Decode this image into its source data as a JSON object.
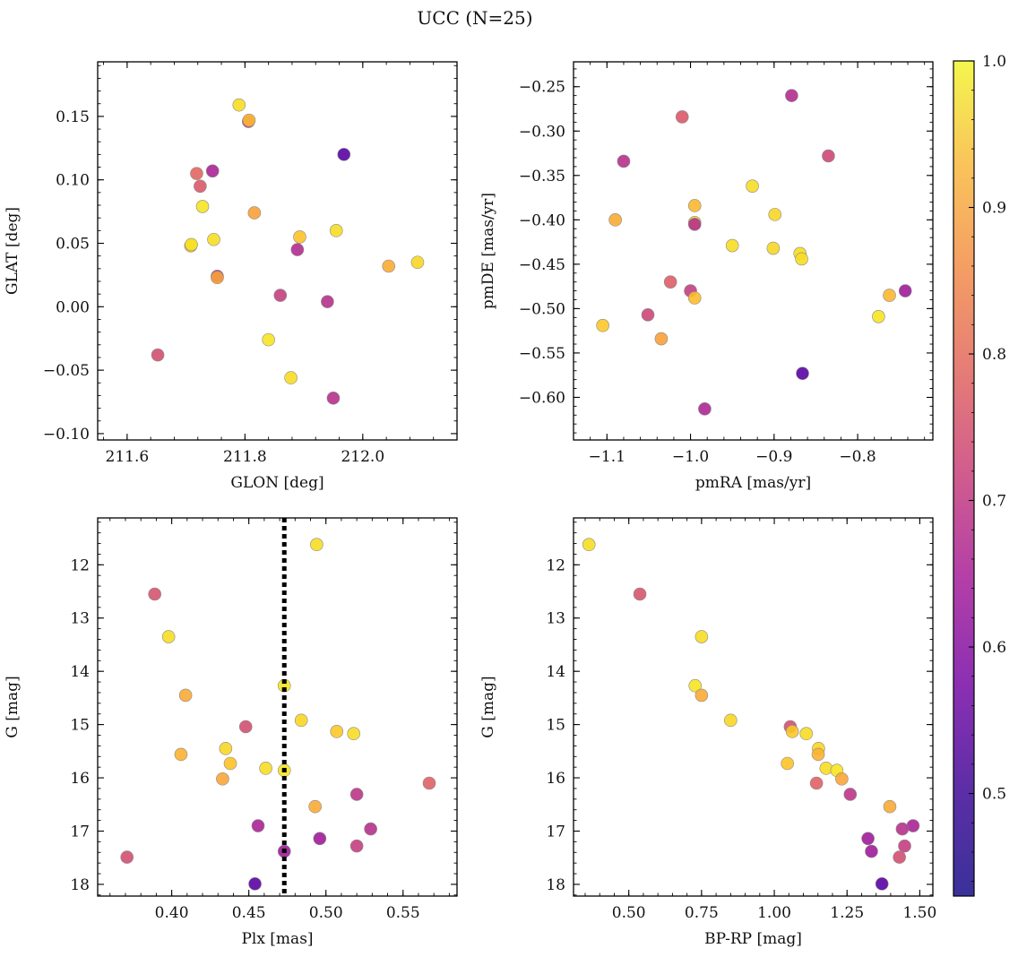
{
  "figure": {
    "title": "UCC (N=25)"
  },
  "chart_data": [
    {
      "type": "scatter",
      "xlabel": "GLON [deg]",
      "ylabel": "GLAT [deg]",
      "xlim": [
        211.55,
        212.16
      ],
      "ylim": [
        -0.105,
        0.193
      ],
      "xticks": [
        211.6,
        211.8,
        212.0
      ],
      "xtick_labels": [
        "211.6",
        "211.8",
        "212.0"
      ],
      "yticks": [
        -0.1,
        -0.05,
        0.0,
        0.05,
        0.1,
        0.15
      ],
      "ytick_labels": [
        "−0.10",
        "−0.05",
        "0.00",
        "0.05",
        "0.10",
        "0.15"
      ],
      "invert_y": false,
      "points": [
        {
          "x": 211.79,
          "y": 0.159,
          "c": 0.96
        },
        {
          "x": 211.806,
          "y": 0.146,
          "c": 0.66
        },
        {
          "x": 211.807,
          "y": 0.147,
          "c": 0.9
        },
        {
          "x": 211.968,
          "y": 0.12,
          "c": 0.46
        },
        {
          "x": 211.745,
          "y": 0.107,
          "c": 0.6
        },
        {
          "x": 211.718,
          "y": 0.105,
          "c": 0.75
        },
        {
          "x": 211.724,
          "y": 0.095,
          "c": 0.72
        },
        {
          "x": 211.728,
          "y": 0.079,
          "c": 0.97
        },
        {
          "x": 211.816,
          "y": 0.074,
          "c": 0.86
        },
        {
          "x": 211.955,
          "y": 0.06,
          "c": 0.96
        },
        {
          "x": 211.893,
          "y": 0.055,
          "c": 0.92
        },
        {
          "x": 211.747,
          "y": 0.053,
          "c": 0.96
        },
        {
          "x": 211.708,
          "y": 0.048,
          "c": 0.9
        },
        {
          "x": 211.709,
          "y": 0.049,
          "c": 0.97
        },
        {
          "x": 211.889,
          "y": 0.045,
          "c": 0.62
        },
        {
          "x": 212.093,
          "y": 0.035,
          "c": 0.95
        },
        {
          "x": 212.044,
          "y": 0.032,
          "c": 0.88
        },
        {
          "x": 211.753,
          "y": 0.024,
          "c": 0.64
        },
        {
          "x": 211.753,
          "y": 0.023,
          "c": 0.86
        },
        {
          "x": 211.86,
          "y": 0.009,
          "c": 0.66
        },
        {
          "x": 211.94,
          "y": 0.004,
          "c": 0.63
        },
        {
          "x": 211.84,
          "y": -0.026,
          "c": 0.97
        },
        {
          "x": 211.652,
          "y": -0.038,
          "c": 0.7
        },
        {
          "x": 211.878,
          "y": -0.056,
          "c": 0.96
        },
        {
          "x": 211.95,
          "y": -0.072,
          "c": 0.63
        }
      ]
    },
    {
      "type": "scatter",
      "xlabel": "pmRA [mas/yr]",
      "ylabel": "pmDE [mas/yr]",
      "xlim": [
        -1.14,
        -0.71
      ],
      "ylim": [
        -0.648,
        -0.222
      ],
      "xticks": [
        -1.1,
        -1.0,
        -0.9,
        -0.8
      ],
      "xtick_labels": [
        "−1.1",
        "−1.0",
        "−0.9",
        "−0.8"
      ],
      "yticks": [
        -0.6,
        -0.55,
        -0.5,
        -0.45,
        -0.4,
        -0.35,
        -0.3,
        -0.25
      ],
      "ytick_labels": [
        "−0.60",
        "−0.55",
        "−0.50",
        "−0.45",
        "−0.40",
        "−0.35",
        "−0.30",
        "−0.25"
      ],
      "invert_y": false,
      "points": [
        {
          "x": -0.879,
          "y": -0.26,
          "c": 0.62
        },
        {
          "x": -1.01,
          "y": -0.284,
          "c": 0.72
        },
        {
          "x": -0.835,
          "y": -0.328,
          "c": 0.68
        },
        {
          "x": -1.08,
          "y": -0.334,
          "c": 0.63
        },
        {
          "x": -0.926,
          "y": -0.362,
          "c": 0.96
        },
        {
          "x": -0.995,
          "y": -0.384,
          "c": 0.9
        },
        {
          "x": -0.899,
          "y": -0.394,
          "c": 0.95
        },
        {
          "x": -1.09,
          "y": -0.4,
          "c": 0.88
        },
        {
          "x": -0.995,
          "y": -0.403,
          "c": 0.96
        },
        {
          "x": -0.995,
          "y": -0.405,
          "c": 0.63
        },
        {
          "x": -0.95,
          "y": -0.429,
          "c": 0.96
        },
        {
          "x": -0.901,
          "y": -0.432,
          "c": 0.95
        },
        {
          "x": -0.869,
          "y": -0.438,
          "c": 0.96
        },
        {
          "x": -0.867,
          "y": -0.444,
          "c": 0.96
        },
        {
          "x": -1.024,
          "y": -0.47,
          "c": 0.73
        },
        {
          "x": -0.743,
          "y": -0.48,
          "c": 0.58
        },
        {
          "x": -1.0,
          "y": -0.48,
          "c": 0.66
        },
        {
          "x": -0.762,
          "y": -0.485,
          "c": 0.9
        },
        {
          "x": -0.995,
          "y": -0.488,
          "c": 0.91
        },
        {
          "x": -1.051,
          "y": -0.507,
          "c": 0.68
        },
        {
          "x": -0.775,
          "y": -0.509,
          "c": 0.97
        },
        {
          "x": -1.105,
          "y": -0.519,
          "c": 0.93
        },
        {
          "x": -1.035,
          "y": -0.534,
          "c": 0.86
        },
        {
          "x": -0.866,
          "y": -0.573,
          "c": 0.46
        },
        {
          "x": -0.983,
          "y": -0.613,
          "c": 0.61
        }
      ]
    },
    {
      "type": "scatter",
      "xlabel": "Plx [mas]",
      "ylabel": "G [mag]",
      "xlim": [
        0.352,
        0.585
      ],
      "ylim": [
        18.22,
        11.12
      ],
      "xticks": [
        0.4,
        0.45,
        0.5,
        0.55
      ],
      "xtick_labels": [
        "0.40",
        "0.45",
        "0.50",
        "0.55"
      ],
      "yticks": [
        12,
        13,
        14,
        15,
        16,
        17,
        18
      ],
      "ytick_labels": [
        "12",
        "13",
        "14",
        "15",
        "16",
        "17",
        "18"
      ],
      "invert_y": true,
      "vline": {
        "x": 0.473,
        "style": "dotted",
        "color": "#000000"
      },
      "points": [
        {
          "x": 0.494,
          "y": 11.62,
          "c": 0.96
        },
        {
          "x": 0.389,
          "y": 12.55,
          "c": 0.71
        },
        {
          "x": 0.398,
          "y": 13.35,
          "c": 0.96
        },
        {
          "x": 0.473,
          "y": 14.27,
          "c": 0.97
        },
        {
          "x": 0.409,
          "y": 14.45,
          "c": 0.88
        },
        {
          "x": 0.484,
          "y": 14.92,
          "c": 0.95
        },
        {
          "x": 0.448,
          "y": 15.04,
          "c": 0.7
        },
        {
          "x": 0.507,
          "y": 15.13,
          "c": 0.93
        },
        {
          "x": 0.518,
          "y": 15.17,
          "c": 0.96
        },
        {
          "x": 0.435,
          "y": 15.45,
          "c": 0.95
        },
        {
          "x": 0.406,
          "y": 15.56,
          "c": 0.89
        },
        {
          "x": 0.438,
          "y": 15.73,
          "c": 0.92
        },
        {
          "x": 0.461,
          "y": 15.82,
          "c": 0.96
        },
        {
          "x": 0.473,
          "y": 15.86,
          "c": 0.97
        },
        {
          "x": 0.433,
          "y": 16.02,
          "c": 0.87
        },
        {
          "x": 0.567,
          "y": 16.1,
          "c": 0.74
        },
        {
          "x": 0.52,
          "y": 16.31,
          "c": 0.64
        },
        {
          "x": 0.493,
          "y": 16.54,
          "c": 0.88
        },
        {
          "x": 0.456,
          "y": 16.9,
          "c": 0.6
        },
        {
          "x": 0.529,
          "y": 16.96,
          "c": 0.63
        },
        {
          "x": 0.496,
          "y": 17.14,
          "c": 0.58
        },
        {
          "x": 0.52,
          "y": 17.28,
          "c": 0.66
        },
        {
          "x": 0.473,
          "y": 17.38,
          "c": 0.58
        },
        {
          "x": 0.371,
          "y": 17.49,
          "c": 0.7
        },
        {
          "x": 0.454,
          "y": 17.99,
          "c": 0.46
        }
      ]
    },
    {
      "type": "scatter",
      "xlabel": "BP-RP [mag]",
      "ylabel": "G [mag]",
      "xlim": [
        0.31,
        1.545
      ],
      "ylim": [
        18.22,
        11.12
      ],
      "xticks": [
        0.5,
        0.75,
        1.0,
        1.25,
        1.5
      ],
      "xtick_labels": [
        "0.50",
        "0.75",
        "1.00",
        "1.25",
        "1.50"
      ],
      "yticks": [
        12,
        13,
        14,
        15,
        16,
        17,
        18
      ],
      "ytick_labels": [
        "12",
        "13",
        "14",
        "15",
        "16",
        "17",
        "18"
      ],
      "invert_y": true,
      "points": [
        {
          "x": 0.363,
          "y": 11.62,
          "c": 0.96
        },
        {
          "x": 0.538,
          "y": 12.55,
          "c": 0.71
        },
        {
          "x": 0.75,
          "y": 13.35,
          "c": 0.96
        },
        {
          "x": 0.728,
          "y": 14.27,
          "c": 0.97
        },
        {
          "x": 0.75,
          "y": 14.45,
          "c": 0.88
        },
        {
          "x": 0.85,
          "y": 14.92,
          "c": 0.95
        },
        {
          "x": 1.055,
          "y": 15.04,
          "c": 0.7
        },
        {
          "x": 1.062,
          "y": 15.13,
          "c": 0.93
        },
        {
          "x": 1.11,
          "y": 15.17,
          "c": 0.96
        },
        {
          "x": 1.152,
          "y": 15.45,
          "c": 0.95
        },
        {
          "x": 1.151,
          "y": 15.56,
          "c": 0.89
        },
        {
          "x": 1.045,
          "y": 15.73,
          "c": 0.92
        },
        {
          "x": 1.178,
          "y": 15.82,
          "c": 0.96
        },
        {
          "x": 1.215,
          "y": 15.86,
          "c": 0.97
        },
        {
          "x": 1.232,
          "y": 16.02,
          "c": 0.87
        },
        {
          "x": 1.145,
          "y": 16.1,
          "c": 0.74
        },
        {
          "x": 1.261,
          "y": 16.31,
          "c": 0.64
        },
        {
          "x": 1.397,
          "y": 16.54,
          "c": 0.88
        },
        {
          "x": 1.477,
          "y": 16.9,
          "c": 0.6
        },
        {
          "x": 1.44,
          "y": 16.96,
          "c": 0.63
        },
        {
          "x": 1.322,
          "y": 17.14,
          "c": 0.58
        },
        {
          "x": 1.448,
          "y": 17.28,
          "c": 0.66
        },
        {
          "x": 1.334,
          "y": 17.38,
          "c": 0.58
        },
        {
          "x": 1.43,
          "y": 17.49,
          "c": 0.7
        },
        {
          "x": 1.37,
          "y": 17.99,
          "c": 0.46
        }
      ]
    }
  ],
  "colorbar": {
    "cmap": "plasma",
    "vmin": 0.43,
    "vmax": 1.0,
    "ticks": [
      0.5,
      0.6,
      0.7,
      0.8,
      0.9,
      1.0
    ],
    "tick_labels": [
      "0.5",
      "0.6",
      "0.7",
      "0.8",
      "0.9",
      "1.0"
    ]
  }
}
